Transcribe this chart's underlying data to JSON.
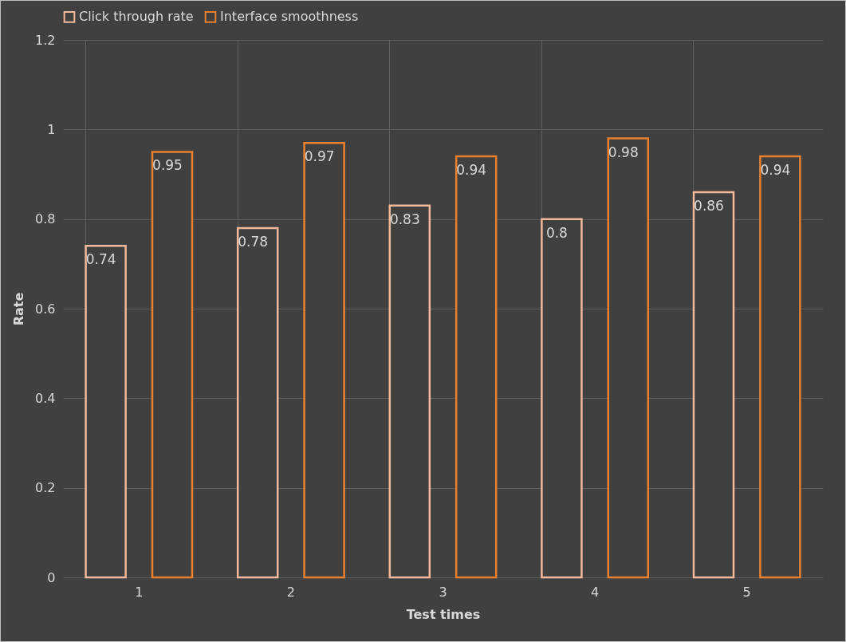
{
  "chart_data": {
    "type": "bar",
    "xlabel": "Test times",
    "ylabel": "Rate",
    "categories": [
      "1",
      "2",
      "3",
      "4",
      "5"
    ],
    "series": [
      {
        "name": "Click through rate",
        "color": "#f4b89a",
        "values": [
          0.74,
          0.78,
          0.83,
          0.8,
          0.86
        ]
      },
      {
        "name": "Interface smoothness",
        "color": "#e8802f",
        "values": [
          0.95,
          0.97,
          0.94,
          0.98,
          0.94
        ]
      }
    ],
    "ylim": [
      0,
      1.2
    ],
    "yticks": [
      0,
      0.2,
      0.4,
      0.6,
      0.8,
      1,
      1.2
    ],
    "grid": true,
    "legend": "top",
    "data_labels": true
  }
}
